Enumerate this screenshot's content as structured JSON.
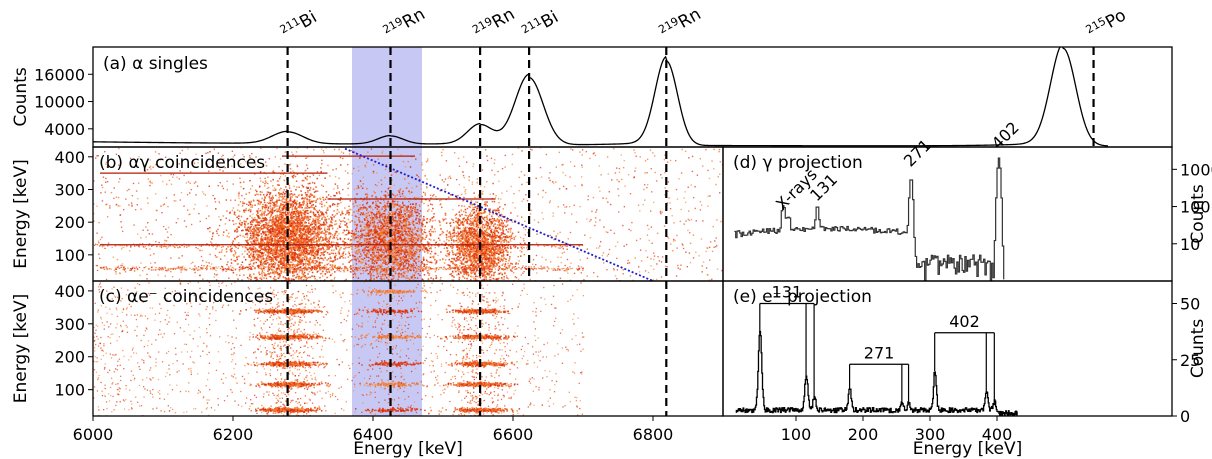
{
  "chart_data": [
    {
      "panel": "a",
      "type": "line",
      "label": "(a) α singles",
      "ylabel": "Counts",
      "xlim": [
        6000,
        6900
      ],
      "yticks": [
        4000,
        10000,
        16000
      ],
      "ytick_labels": [
        "4000",
        "10000",
        "16000"
      ],
      "peaks": [
        {
          "x": 6278,
          "height": 2600,
          "width": 22
        },
        {
          "x": 6425,
          "height": 1800,
          "width": 18
        },
        {
          "x": 6553,
          "height": 4200,
          "width": 18
        },
        {
          "x": 6623,
          "height": 14800,
          "width": 20
        },
        {
          "x": 6819,
          "height": 18600,
          "width": 16
        },
        {
          "x": 7386,
          "height": 21500,
          "width": 18
        }
      ],
      "nuclide_lines": [
        {
          "x": 6278,
          "mass": "211",
          "symbol": "Bi"
        },
        {
          "x": 6425,
          "mass": "219",
          "symbol": "Rn"
        },
        {
          "x": 6553,
          "mass": "219",
          "symbol": "Rn"
        },
        {
          "x": 6623,
          "mass": "211",
          "symbol": "Bi"
        },
        {
          "x": 6819,
          "mass": "219",
          "symbol": "Rn"
        },
        {
          "x": 7386,
          "mass": "215",
          "symbol": "Po"
        }
      ],
      "shaded_band": [
        6370,
        6470
      ],
      "shade_color": "#c8c8f5"
    },
    {
      "panel": "b",
      "type": "heatmap",
      "label": "(b) αγ coincidences",
      "ylabel": "Energy [keV]",
      "xlim": [
        6000,
        6900
      ],
      "ylim": [
        20,
        430
      ],
      "yticks": [
        100,
        200,
        300,
        400
      ],
      "ytick_labels": [
        "100",
        "200",
        "300",
        "400"
      ],
      "clusters": [
        {
          "x": 6278,
          "y": 150,
          "sx": 35,
          "sy": 75,
          "n": 3600
        },
        {
          "x": 6425,
          "y": 150,
          "sx": 30,
          "sy": 70,
          "n": 2200
        },
        {
          "x": 6553,
          "y": 125,
          "sx": 22,
          "sy": 60,
          "n": 1900
        }
      ],
      "horizontal_lines": [
        {
          "y": 402,
          "x0": 6270,
          "x1": 6460
        },
        {
          "y": 350,
          "x0": 6010,
          "x1": 6335
        },
        {
          "y": 271,
          "x0": 6335,
          "x1": 6575
        },
        {
          "y": 131,
          "x0": 6010,
          "x1": 6700
        }
      ],
      "diagonal_line": {
        "x0": 6360,
        "y0": 425,
        "x1": 6800,
        "y1": 20
      },
      "diag_color": "#1f1fcf"
    },
    {
      "panel": "c",
      "type": "heatmap",
      "label": "(c) αe⁻ coincidences",
      "ylabel": "Energy [keV]",
      "xlim": [
        6000,
        6900
      ],
      "ylim": [
        20,
        430
      ],
      "yticks": [
        100,
        200,
        300,
        400
      ],
      "ytick_labels": [
        "100",
        "200",
        "300",
        "400"
      ],
      "xlabel": "Energy [keV]",
      "xticks": [
        6000,
        6200,
        6400,
        6600,
        6800
      ],
      "xtick_labels": [
        "6000",
        "6200",
        "6400",
        "6600",
        "6800"
      ],
      "bands": [
        {
          "x": 6278,
          "ys": [
            40,
            118,
            180,
            262,
            340
          ],
          "n": 450
        },
        {
          "x": 6425,
          "ys": [
            40,
            118,
            180,
            262,
            340,
            400
          ],
          "n": 160
        },
        {
          "x": 6553,
          "ys": [
            40,
            118,
            180,
            262,
            340
          ],
          "n": 330
        }
      ]
    },
    {
      "panel": "d",
      "type": "line",
      "label": "(d) γ projection",
      "ylabel": "Counts",
      "yscale": "log",
      "xlim": [
        0,
        430
      ],
      "yticks": [
        10,
        100,
        1000
      ],
      "ytick_labels": [
        "10",
        "100",
        "1000"
      ],
      "annotations": [
        "X-rays",
        "131",
        "271",
        "402"
      ],
      "peaks": [
        {
          "x": 80,
          "counts": 60
        },
        {
          "x": 131,
          "counts": 80
        },
        {
          "x": 271,
          "counts": 600
        },
        {
          "x": 402,
          "counts": 2000
        }
      ]
    },
    {
      "panel": "e",
      "type": "line",
      "label": "(e) e⁻ projection",
      "ylabel": "Counts",
      "xlabel": "Energy [keV]",
      "xlim": [
        0,
        430
      ],
      "ylim": [
        0,
        60
      ],
      "yticks": [
        0,
        25,
        50
      ],
      "ytick_labels": [
        "0",
        "25",
        "50"
      ],
      "xticks": [
        100,
        200,
        300,
        400
      ],
      "xtick_labels": [
        "100",
        "200",
        "300",
        "400"
      ],
      "peaks": [
        {
          "x": 46,
          "counts": 35,
          "width": 2.5
        },
        {
          "x": 115,
          "counts": 15,
          "width": 2.5
        },
        {
          "x": 127,
          "counts": 6,
          "width": 2
        },
        {
          "x": 180,
          "counts": 10,
          "width": 2
        },
        {
          "x": 258,
          "counts": 3,
          "width": 2
        },
        {
          "x": 268,
          "counts": 3,
          "width": 2
        },
        {
          "x": 307,
          "counts": 18,
          "width": 2
        },
        {
          "x": 384,
          "counts": 8,
          "width": 2
        },
        {
          "x": 396,
          "counts": 4,
          "width": 2
        }
      ],
      "brackets": [
        {
          "label": "131",
          "left": 46,
          "rights": [
            115,
            127
          ],
          "level": 50
        },
        {
          "label": "271",
          "left": 180,
          "rights": [
            258,
            268
          ],
          "level": 23
        },
        {
          "label": "402",
          "left": 307,
          "rights": [
            384,
            396
          ],
          "level": 37
        }
      ]
    }
  ]
}
